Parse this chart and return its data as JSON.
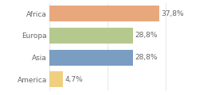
{
  "categories": [
    "Africa",
    "Europa",
    "Asia",
    "America"
  ],
  "values": [
    37.8,
    28.8,
    28.8,
    4.7
  ],
  "labels": [
    "37,8%",
    "28,8%",
    "28,8%",
    "4,7%"
  ],
  "bar_colors": [
    "#e8a87c",
    "#b5c98e",
    "#7b9dc2",
    "#f0d080"
  ],
  "background_color": "#ffffff",
  "xlim": [
    0,
    46
  ],
  "label_fontsize": 6.5,
  "category_fontsize": 6.5,
  "bar_height": 0.72,
  "grid_color": "#dddddd",
  "text_color": "#666666"
}
